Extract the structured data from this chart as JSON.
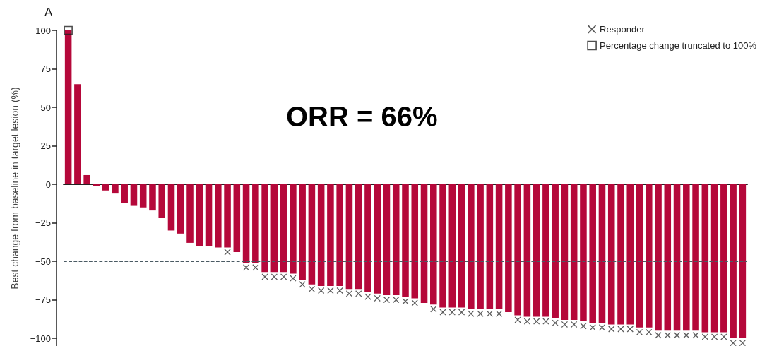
{
  "chart_data": {
    "type": "bar",
    "title": "A",
    "ylabel": "Best change from baseline in target lesion (%)",
    "annotations": [
      "ORR = 66%"
    ],
    "categories": [
      null,
      null,
      null,
      null,
      null,
      null,
      null,
      null,
      null,
      null,
      null,
      null,
      null,
      null,
      null,
      null,
      null,
      null,
      null,
      null,
      null,
      null,
      null,
      null,
      null,
      null,
      null,
      null,
      null,
      null,
      null,
      null,
      null,
      null,
      null,
      null,
      null,
      null,
      null,
      null,
      null,
      null,
      null,
      null,
      null,
      null,
      null,
      null,
      null,
      null,
      null,
      null,
      null,
      null,
      null,
      null,
      null,
      null,
      null,
      null,
      null,
      null,
      null,
      null,
      null,
      null,
      null,
      null,
      null,
      null,
      null,
      null,
      null
    ],
    "series": [
      {
        "color": "#b5083a",
        "values": [
          100,
          65,
          6,
          -1,
          -4,
          -6,
          -12,
          -14,
          -15,
          -17,
          -22,
          -30,
          -32,
          -38,
          -40,
          -40,
          -41,
          -41,
          -44,
          -51,
          -51,
          -57,
          -57,
          -57,
          -58,
          -62,
          -65,
          -66,
          -66,
          -66,
          -68,
          -68,
          -70,
          -71,
          -72,
          -72,
          -73,
          -74,
          -77,
          -78,
          -80,
          -80,
          -80,
          -81,
          -81,
          -81,
          -81,
          -83,
          -85,
          -86,
          -86,
          -86,
          -87,
          -88,
          -88,
          -89,
          -90,
          -90,
          -91,
          -91,
          -91,
          -93,
          -93,
          -95,
          -95,
          -95,
          -95,
          -95,
          -96,
          -96,
          -96,
          -100,
          -100
        ]
      },
      {
        "type": "scatter",
        "name": "Responder",
        "marker": "cross",
        "color": "#333333",
        "values": [
          null,
          null,
          null,
          null,
          null,
          null,
          null,
          null,
          null,
          null,
          null,
          null,
          null,
          null,
          null,
          null,
          null,
          -44,
          null,
          -54,
          -54,
          -60,
          -60,
          -60,
          -61,
          -65,
          -68,
          -69,
          -69,
          -69,
          -71,
          -71,
          -73,
          -74,
          -75,
          -75,
          -76,
          -77,
          null,
          -81,
          -83,
          -83,
          -83,
          -84,
          -84,
          -84,
          -84,
          null,
          -88,
          -89,
          -89,
          -89,
          -90,
          -91,
          -91,
          -92,
          -93,
          -93,
          -94,
          -94,
          -94,
          -96,
          -96,
          -98,
          -98,
          -98,
          -98,
          -98,
          -99,
          -99,
          -99,
          -103,
          -103
        ]
      },
      {
        "type": "scatter",
        "name": "Percentage change truncated to 100%",
        "marker": "square",
        "color": "#222222",
        "values": [
          100,
          null,
          null,
          null,
          null,
          null,
          null,
          null,
          null,
          null,
          null,
          null,
          null,
          null,
          null,
          null,
          null,
          null,
          null,
          null,
          null,
          null,
          null,
          null,
          null,
          null,
          null,
          null,
          null,
          null,
          null,
          null,
          null,
          null,
          null,
          null,
          null,
          null,
          null,
          null,
          null,
          null,
          null,
          null,
          null,
          null,
          null,
          null,
          null,
          null,
          null,
          null,
          null,
          null,
          null,
          null,
          null,
          null,
          null,
          null,
          null,
          null,
          null,
          null,
          null,
          null,
          null,
          null,
          null,
          null,
          null,
          null,
          null
        ]
      }
    ],
    "ylim": [
      -105,
      100
    ],
    "yticks": [
      -100,
      -75,
      -50,
      -25,
      0,
      25,
      50,
      75,
      100
    ],
    "ref_lines": [
      {
        "axis": "y",
        "value": -50,
        "color": "#4a5a63",
        "line_style": "dashed"
      }
    ],
    "tick_labels": "y",
    "grid": false,
    "legend": "top right"
  }
}
